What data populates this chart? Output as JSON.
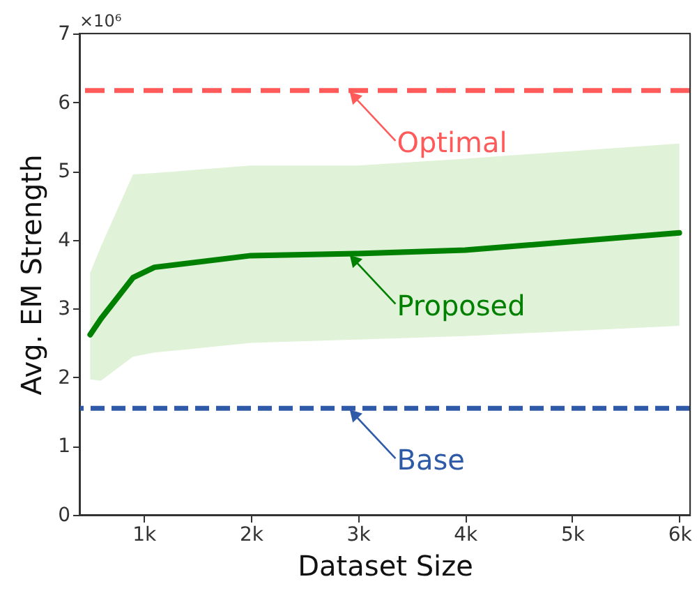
{
  "chart_data": {
    "type": "line",
    "xlabel": "Dataset Size",
    "ylabel": "Avg. EM Strength",
    "annotations": [
      "×10⁶"
    ],
    "xlim": [
      400,
      6100
    ],
    "xticks": [
      {
        "value": 1000,
        "label": "1k"
      },
      {
        "value": 2000,
        "label": "2k"
      },
      {
        "value": 3000,
        "label": "3k"
      },
      {
        "value": 4000,
        "label": "4k"
      },
      {
        "value": 5000,
        "label": "5k"
      },
      {
        "value": 6000,
        "label": "6k"
      }
    ],
    "ylim": [
      0,
      7
    ],
    "yticks": [
      0,
      1,
      2,
      3,
      4,
      5,
      6,
      7
    ],
    "grid": false,
    "line_style": "solid",
    "series": [
      {
        "name": "Proposed",
        "color": "#008000",
        "x": [
          500,
          600,
          900,
          1100,
          2000,
          3000,
          4000,
          6000
        ],
        "values": [
          2.62,
          2.85,
          3.45,
          3.6,
          3.77,
          3.8,
          3.85,
          4.1
        ],
        "lower": [
          1.97,
          1.95,
          2.3,
          2.36,
          2.5,
          2.55,
          2.6,
          2.75
        ],
        "upper": [
          3.52,
          3.9,
          4.95,
          4.97,
          5.08,
          5.08,
          5.18,
          5.4
        ]
      }
    ],
    "ref_lines": [
      {
        "axis": "y",
        "value": 6.17,
        "label": "Optimal",
        "color": "#ff5a5a",
        "line_style": "dashed"
      },
      {
        "axis": "y",
        "value": 1.55,
        "label": "Base",
        "color": "#2e5aa8",
        "line_style": "dashed"
      }
    ]
  }
}
